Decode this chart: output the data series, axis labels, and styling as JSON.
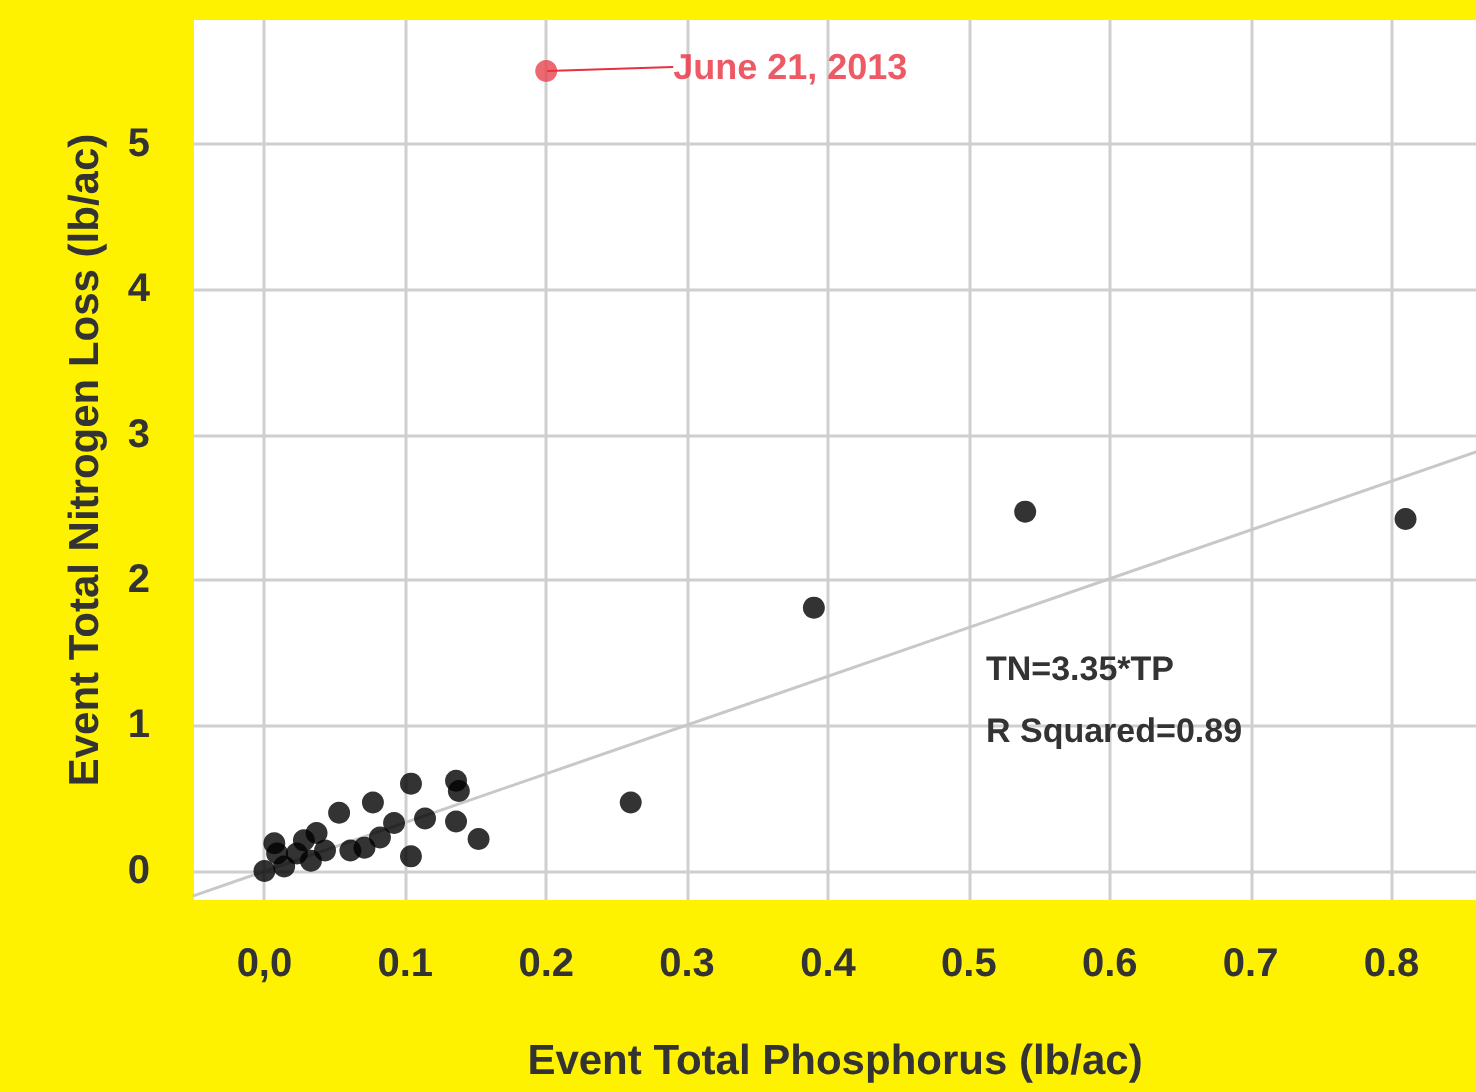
{
  "chart_data": {
    "type": "scatter",
    "xlabel": "Event Total Phosphorus (lb/ac)",
    "ylabel": "Event Total Nitrogen Loss (lb/ac)",
    "annotations": [
      "TN=3.35*TP",
      "R Squared=0.89",
      {
        "text": "June 21, 2013",
        "x": 0.2,
        "y": 5.5
      }
    ],
    "series": [
      {
        "color": "#000000",
        "x": [
          0.39,
          0.54,
          0.81,
          0.26,
          0.104,
          0.136,
          0.138,
          0.053,
          0.077,
          0.114,
          0.136,
          0.152,
          0.104,
          0.092,
          0.082,
          0.071,
          0.037,
          0.028,
          0.007,
          0.0,
          0.014,
          0.033,
          0.043,
          0.061,
          0.023,
          0.009
        ],
        "values": [
          1.81,
          2.47,
          2.42,
          0.47,
          0.6,
          0.62,
          0.55,
          0.4,
          0.47,
          0.36,
          0.34,
          0.22,
          0.1,
          0.33,
          0.23,
          0.16,
          0.26,
          0.21,
          0.19,
          0.0,
          0.03,
          0.07,
          0.14,
          0.14,
          0.12,
          0.12
        ]
      },
      {
        "color": "#e8434f",
        "x": [
          0.2
        ],
        "values": [
          5.5
        ]
      },
      {
        "type": "line",
        "color": "#c8c8c8",
        "marker": "none",
        "x": [
          -0.05,
          0.86
        ],
        "values": [
          -0.17,
          2.88
        ]
      }
    ],
    "xlim": [
      -0.05,
      0.86
    ],
    "xticks": [
      {
        "value": 0,
        "label": "0,0"
      },
      0.1,
      0.2,
      0.3,
      0.4,
      0.5,
      0.6,
      0.7,
      0.8
    ],
    "ylim": [
      -0.2,
      5.85
    ],
    "yticks": [
      0,
      1,
      2,
      3,
      4,
      5
    ],
    "grid": true,
    "marker": "circle"
  }
}
